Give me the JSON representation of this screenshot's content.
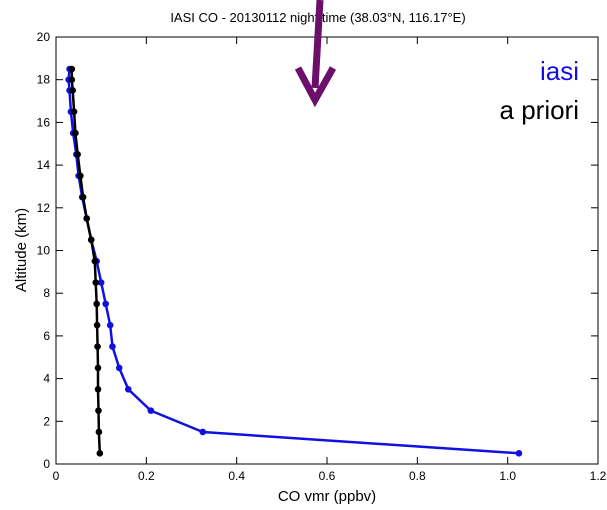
{
  "chart_data": {
    "type": "line",
    "title": "IASI CO - 20130112 night time (38.03°N, 116.17°E)",
    "xlabel": "CO vmr (ppbv)",
    "ylabel": "Altitude (km)",
    "xlim": [
      0,
      1.2
    ],
    "ylim": [
      0,
      20
    ],
    "xticks": [
      "0",
      "0.2",
      "0.4",
      "0.6",
      "0.8",
      "1.0",
      "1.2"
    ],
    "yticks": [
      "0",
      "2",
      "4",
      "6",
      "8",
      "10",
      "12",
      "14",
      "16",
      "18",
      "20"
    ],
    "grid": false,
    "legend_position": "top-right",
    "series": [
      {
        "name": "iasi",
        "color": "#1010e0",
        "x": [
          1.025,
          0.325,
          0.21,
          0.16,
          0.14,
          0.125,
          0.12,
          0.11,
          0.1,
          0.09,
          0.078,
          0.068,
          0.058,
          0.05,
          0.045,
          0.038,
          0.033,
          0.03,
          0.028,
          0.03
        ],
        "y": [
          0.5,
          1.5,
          2.5,
          3.5,
          4.5,
          5.5,
          6.5,
          7.5,
          8.5,
          9.5,
          10.5,
          11.5,
          12.5,
          13.5,
          14.5,
          15.5,
          16.5,
          17.5,
          18.0,
          18.5
        ]
      },
      {
        "name": "a priori",
        "color": "#000000",
        "x": [
          0.097,
          0.095,
          0.094,
          0.093,
          0.093,
          0.092,
          0.091,
          0.09,
          0.088,
          0.086,
          0.078,
          0.068,
          0.06,
          0.054,
          0.048,
          0.043,
          0.04,
          0.037,
          0.035,
          0.035
        ],
        "y": [
          0.5,
          1.5,
          2.5,
          3.5,
          4.5,
          5.5,
          6.5,
          7.5,
          8.5,
          9.5,
          10.5,
          11.5,
          12.5,
          13.5,
          14.5,
          15.5,
          16.5,
          17.5,
          18.0,
          18.5
        ]
      }
    ],
    "annotations": [
      {
        "type": "arrow",
        "color": "#6b0f6b",
        "direction": "down"
      }
    ]
  }
}
